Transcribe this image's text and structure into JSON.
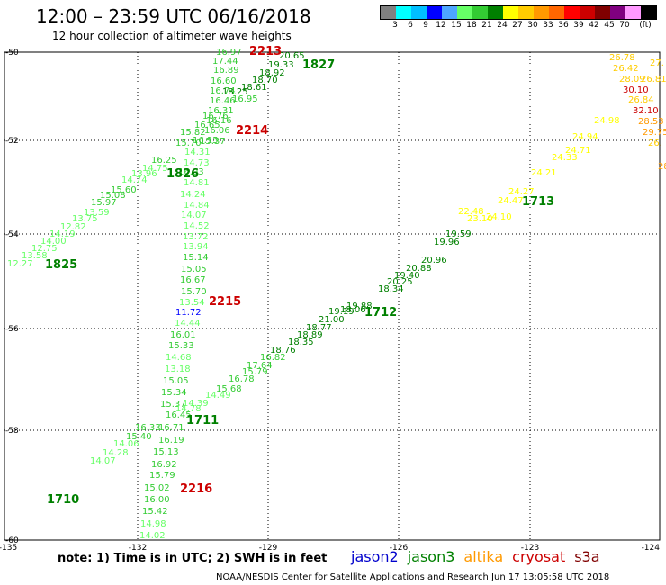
{
  "title": "12:00 – 23:59 UTC 06/16/2018",
  "subtitle": "12 hour collection of altimeter wave heights",
  "colorbar": {
    "swatches": [
      "#808080",
      "#00ffff",
      "#00bfff",
      "#0000ff",
      "#4da6ff",
      "#66ff66",
      "#33cc33",
      "#008000",
      "#ffff00",
      "#ffcc00",
      "#ff9900",
      "#ff6600",
      "#ff0000",
      "#cc0000",
      "#800000",
      "#800080",
      "#ff99ff",
      "#000000"
    ],
    "labels": [
      "3",
      "6",
      "9",
      "12",
      "15",
      "18",
      "21",
      "24",
      "27",
      "30",
      "33",
      "36",
      "39",
      "42",
      "45",
      "70",
      "(ft)"
    ]
  },
  "axes": {
    "x_ticks": [
      "-135",
      "-132",
      "-129",
      "-126",
      "-123",
      "-124"
    ],
    "y_ticks": [
      "-50",
      "-52",
      "-54",
      "-56",
      "-58",
      "-60"
    ]
  },
  "colors": {
    "l1": "#66ff66",
    "l2": "#33cc33",
    "l3": "#008000",
    "y1": "#ffff00",
    "y2": "#ffcc00",
    "o1": "#ff9900",
    "r1": "#cc0000",
    "b1": "#0000ff"
  },
  "track_labels": [
    {
      "text": "2213",
      "c": "r1"
    },
    {
      "text": "1827",
      "c": "l3"
    },
    {
      "text": "2214",
      "c": "r1"
    },
    {
      "text": "1826",
      "c": "l3"
    },
    {
      "text": "1825",
      "c": "l3"
    },
    {
      "text": "2215",
      "c": "r1"
    },
    {
      "text": "1713",
      "c": "l3"
    },
    {
      "text": "1712",
      "c": "l3"
    },
    {
      "text": "1711",
      "c": "l3"
    },
    {
      "text": "2216",
      "c": "r1"
    },
    {
      "text": "1710",
      "c": "l3"
    }
  ],
  "values": [
    {
      "text": "16.97",
      "c": "l2"
    },
    {
      "text": "17.44",
      "c": "l2"
    },
    {
      "text": "16.89",
      "c": "l2"
    },
    {
      "text": "16.60",
      "c": "l2"
    },
    {
      "text": "16.74",
      "c": "l2"
    },
    {
      "text": "16.46",
      "c": "l2"
    },
    {
      "text": "16.31",
      "c": "l2"
    },
    {
      "text": "16.16",
      "c": "l2"
    },
    {
      "text": "16.06",
      "c": "l2"
    },
    {
      "text": "16.15",
      "c": "l2"
    },
    {
      "text": "15.37",
      "c": "l2"
    },
    {
      "text": "14.31",
      "c": "l1"
    },
    {
      "text": "14.73",
      "c": "l1"
    },
    {
      "text": "16.03",
      "c": "l2"
    },
    {
      "text": "14.81",
      "c": "l1"
    },
    {
      "text": "14.24",
      "c": "l1"
    },
    {
      "text": "14.84",
      "c": "l1"
    },
    {
      "text": "14.07",
      "c": "l1"
    },
    {
      "text": "14.52",
      "c": "l1"
    },
    {
      "text": "13.72",
      "c": "l1"
    },
    {
      "text": "13.94",
      "c": "l1"
    },
    {
      "text": "15.14",
      "c": "l2"
    },
    {
      "text": "15.05",
      "c": "l2"
    },
    {
      "text": "16.67",
      "c": "l2"
    },
    {
      "text": "15.70",
      "c": "l2"
    },
    {
      "text": "13.54",
      "c": "l1"
    },
    {
      "text": "11.72",
      "c": "b1"
    },
    {
      "text": "14.44",
      "c": "l1"
    },
    {
      "text": "16.01",
      "c": "l2"
    },
    {
      "text": "15.33",
      "c": "l2"
    },
    {
      "text": "14.68",
      "c": "l1"
    },
    {
      "text": "13.18",
      "c": "l1"
    },
    {
      "text": "15.05",
      "c": "l2"
    },
    {
      "text": "15.34",
      "c": "l2"
    },
    {
      "text": "15.37",
      "c": "l2"
    },
    {
      "text": "16.71",
      "c": "l2"
    },
    {
      "text": "16.19",
      "c": "l2"
    },
    {
      "text": "15.13",
      "c": "l2"
    },
    {
      "text": "16.92",
      "c": "l2"
    },
    {
      "text": "15.79",
      "c": "l2"
    },
    {
      "text": "15.02",
      "c": "l2"
    },
    {
      "text": "16.00",
      "c": "l2"
    },
    {
      "text": "15.42",
      "c": "l2"
    },
    {
      "text": "14.98",
      "c": "l1"
    },
    {
      "text": "14.02",
      "c": "l1"
    },
    {
      "text": "20.65",
      "c": "l3"
    },
    {
      "text": "19.33",
      "c": "l3"
    },
    {
      "text": "18.92",
      "c": "l3"
    },
    {
      "text": "18.70",
      "c": "l3"
    },
    {
      "text": "18.61",
      "c": "l3"
    },
    {
      "text": "18.25",
      "c": "l3"
    },
    {
      "text": "16.95",
      "c": "l2"
    },
    {
      "text": "16.76",
      "c": "l2"
    },
    {
      "text": "16.65",
      "c": "l2"
    },
    {
      "text": "15.82",
      "c": "l2"
    },
    {
      "text": "15.70",
      "c": "l2"
    },
    {
      "text": "16.25",
      "c": "l2"
    },
    {
      "text": "14.75",
      "c": "l1"
    },
    {
      "text": "13.96",
      "c": "l1"
    },
    {
      "text": "14.74",
      "c": "l1"
    },
    {
      "text": "15.60",
      "c": "l2"
    },
    {
      "text": "15.08",
      "c": "l2"
    },
    {
      "text": "15.97",
      "c": "l2"
    },
    {
      "text": "13.59",
      "c": "l1"
    },
    {
      "text": "13.75",
      "c": "l1"
    },
    {
      "text": "12.82",
      "c": "l1"
    },
    {
      "text": "14.19",
      "c": "l1"
    },
    {
      "text": "14.00",
      "c": "l1"
    },
    {
      "text": "12.75",
      "c": "l1"
    },
    {
      "text": "13.58",
      "c": "l1"
    },
    {
      "text": "12.27",
      "c": "l1"
    },
    {
      "text": "26.78",
      "c": "y2"
    },
    {
      "text": "27.",
      "c": "y2"
    },
    {
      "text": "26.42",
      "c": "y2"
    },
    {
      "text": "28.09",
      "c": "y2"
    },
    {
      "text": "26.81",
      "c": "y2"
    },
    {
      "text": "30.10",
      "c": "r1"
    },
    {
      "text": "26.84",
      "c": "y2"
    },
    {
      "text": "32.10",
      "c": "r1"
    },
    {
      "text": "28.53",
      "c": "o1"
    },
    {
      "text": "29.75",
      "c": "o1"
    },
    {
      "text": "26.",
      "c": "y2"
    },
    {
      "text": "28",
      "c": "o1"
    },
    {
      "text": "24.98",
      "c": "y1"
    },
    {
      "text": "24.94",
      "c": "y1"
    },
    {
      "text": "24.71",
      "c": "y1"
    },
    {
      "text": "24.33",
      "c": "y1"
    },
    {
      "text": "24.21",
      "c": "y1"
    },
    {
      "text": "24.27",
      "c": "y1"
    },
    {
      "text": "24.47",
      "c": "y1"
    },
    {
      "text": "24.10",
      "c": "y1"
    },
    {
      "text": "23.10",
      "c": "y1"
    },
    {
      "text": "22.48",
      "c": "y1"
    },
    {
      "text": "19.59",
      "c": "l3"
    },
    {
      "text": "19.96",
      "c": "l3"
    },
    {
      "text": "20.96",
      "c": "l3"
    },
    {
      "text": "20.88",
      "c": "l3"
    },
    {
      "text": "19.40",
      "c": "l3"
    },
    {
      "text": "20.25",
      "c": "l3"
    },
    {
      "text": "18.34",
      "c": "l3"
    },
    {
      "text": "19.88",
      "c": "l3"
    },
    {
      "text": "19.19",
      "c": "l3"
    },
    {
      "text": "18.06",
      "c": "l3"
    },
    {
      "text": "21.00",
      "c": "l3"
    },
    {
      "text": "18.77",
      "c": "l3"
    },
    {
      "text": "18.89",
      "c": "l3"
    },
    {
      "text": "18.35",
      "c": "l3"
    },
    {
      "text": "18.76",
      "c": "l3"
    },
    {
      "text": "16.82",
      "c": "l2"
    },
    {
      "text": "17.64",
      "c": "l2"
    },
    {
      "text": "15.79",
      "c": "l2"
    },
    {
      "text": "16.78",
      "c": "l2"
    },
    {
      "text": "15.68",
      "c": "l2"
    },
    {
      "text": "14.49",
      "c": "l1"
    },
    {
      "text": "14.39",
      "c": "l1"
    },
    {
      "text": "14.78",
      "c": "l1"
    },
    {
      "text": "16.45",
      "c": "l2"
    },
    {
      "text": "16.33",
      "c": "l2"
    },
    {
      "text": "15.40",
      "c": "l2"
    },
    {
      "text": "14.06",
      "c": "l1"
    },
    {
      "text": "14.28",
      "c": "l1"
    },
    {
      "text": "14.07",
      "c": "l1"
    }
  ],
  "note": "note:  1) Time is in UTC; 2) SWH is in feet",
  "satellites": [
    {
      "name": "jason2",
      "color": "#0000cc"
    },
    {
      "name": "jason3",
      "color": "#008000"
    },
    {
      "name": "altika",
      "color": "#ff9900"
    },
    {
      "name": "cryosat",
      "color": "#cc0000"
    },
    {
      "name": "s3a",
      "color": "#800000"
    }
  ],
  "footer": "NOAA/NESDIS Center for Satellite Applications and Research    Jun 17 13:05:58 UTC 2018"
}
